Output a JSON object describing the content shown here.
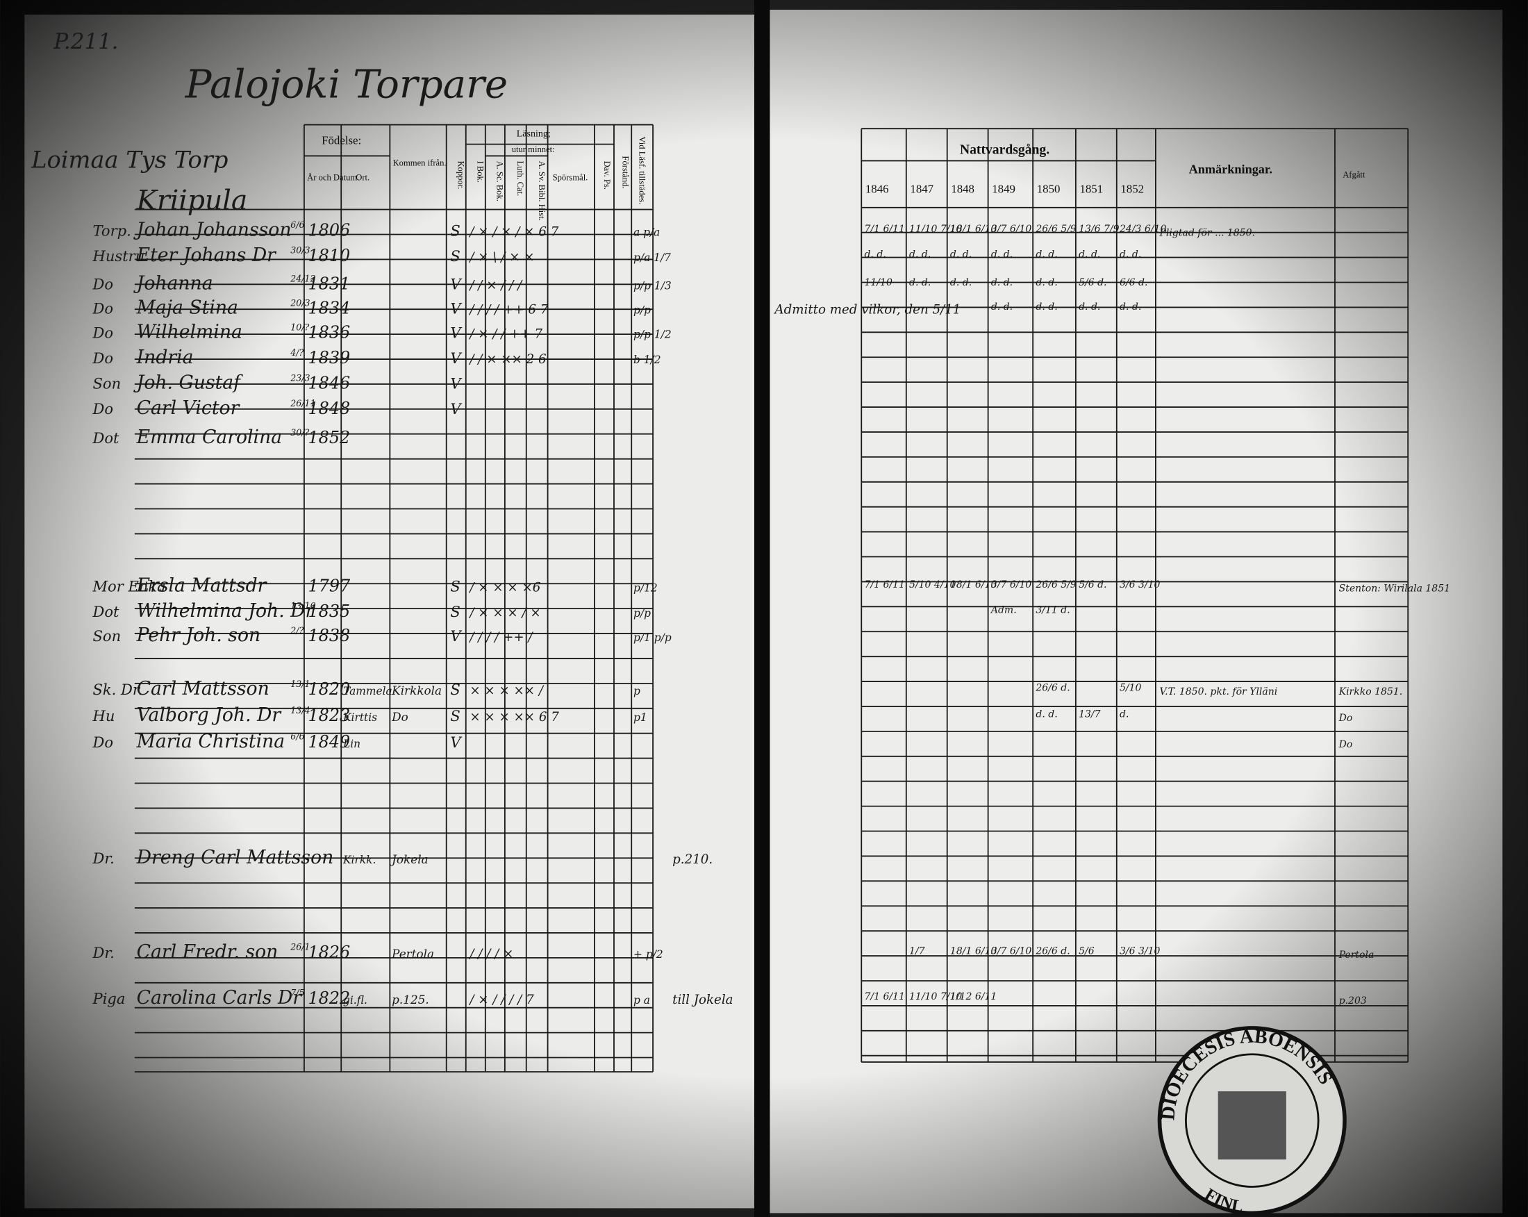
{
  "page_number": "P.211.",
  "title": "Palojoki Torpare",
  "household": "Loimaa Tys Torp",
  "farm": "Kriipula",
  "left_header": {
    "fodelse": "Födelse:",
    "ar": "År och Datum.",
    "ort": "Ort.",
    "kommen": "Kommen ifrån.",
    "koppor": "Koppor.",
    "lasning": "Läsning;",
    "utur": "utur minnet:",
    "ibok": "I Bok.",
    "abok": "A. Sc. Bok.",
    "luth": "Luth. Cat.",
    "asv": "A. Sv. Bibl. Hist.",
    "spors": "Spörsmål.",
    "dav": "Dav. Ps.",
    "forst": "Förstånd.",
    "vid": "Vid Läsf. tillstädes."
  },
  "right_header": {
    "natt": "Nattvardsgång.",
    "years": [
      "1846",
      "1847",
      "1848",
      "1849",
      "1850",
      "1851",
      "1852"
    ],
    "anm": "Anmärkningar.",
    "afgatt": "Afgått"
  },
  "rows": [
    {
      "rel": "Torp.",
      "name": "Johan Johansson",
      "date": "6/6",
      "year": "1806",
      "koppor": "S",
      "reading": "/ × / × / × 6 7",
      "vid": "a p/a",
      "communion": [
        "7/1 6/11",
        "11/10 7/10",
        "18/1 6/10",
        "3/7 6/10",
        "26/6 5/9",
        "13/6 7/9",
        "24/3 6/10"
      ],
      "anm": "Pligtad för ...  1850."
    },
    {
      "rel": "Hustru",
      "name": "Eter Johans Dr",
      "date": "30/3",
      "year": "1810",
      "koppor": "S",
      "reading": "/ × \\ / × ×",
      "vid": "p/a 1/7",
      "communion": [
        "d. d.",
        "d. d.",
        "d. d.",
        "d. d.",
        "d. d.",
        "d. d.",
        "d. d."
      ]
    },
    {
      "rel": "Do",
      "name": "Johanna",
      "date": "24/12",
      "year": "1831",
      "koppor": "V",
      "reading": "/ / × / / /",
      "vid": "p/p 1/3",
      "communion": [
        "11/10",
        "d. d.",
        "d. d.",
        "d. d.",
        "d. d.",
        "5/6 d.",
        "6/6 d."
      ]
    },
    {
      "rel": "Do",
      "name": "Maja Stina",
      "date": "20/3",
      "year": "1834",
      "koppor": "V",
      "reading": "/ / / / ++ 6 7",
      "vid": "p/p",
      "note": "Admitto med vilkor, den 5/11",
      "communion": [
        "",
        "",
        "",
        "d. d.",
        "d. d.",
        "d. d.",
        "d. d."
      ]
    },
    {
      "rel": "Do",
      "name": "Wilhelmina",
      "date": "10/?",
      "year": "1836",
      "koppor": "V",
      "reading": "/ × / / ++ 7",
      "vid": "p/p 1/2"
    },
    {
      "rel": "Do",
      "name": "Indria",
      "date": "4/?",
      "year": "1839",
      "koppor": "V",
      "reading": "/ / × ×× 2 6",
      "vid": "b 1/2"
    },
    {
      "rel": "Son",
      "name": "Joh. Gustaf",
      "date": "23/3",
      "year": "1846",
      "koppor": "V"
    },
    {
      "rel": "Do",
      "name": "Carl Victor",
      "date": "26/11",
      "year": "1848",
      "koppor": "V"
    },
    {
      "rel": "Dot",
      "name": "Emma Carolina",
      "date": "30/?",
      "year": "1852"
    },
    {
      "rel": "Mor Enka",
      "name": "Ersla Mattsdr",
      "year": "1797",
      "koppor": "S",
      "reading": "/ × × × ×6",
      "vid": "p/12",
      "communion": [
        "7/1 6/11",
        "5/10 4/10",
        "18/1 6/10",
        "3/7 6/10",
        "26/6 5/9",
        "5/6 d.",
        "3/6 3/10"
      ],
      "afgatt": "Stenton: Wirilala 1851"
    },
    {
      "rel": "Dot",
      "name": "Wilhelmina Joh. Dr",
      "date": "13/10",
      "year": "1835",
      "koppor": "S",
      "reading": "/ × × × / ×",
      "vid": "p/p",
      "communion": [
        "",
        "",
        "",
        "Adm.",
        "3/11 d.",
        "",
        ""
      ]
    },
    {
      "rel": "Son",
      "name": "Pehr Joh. son",
      "date": "2/?",
      "year": "1838",
      "koppor": "V",
      "reading": "/ / / / ++ /",
      "vid": "p/1 p/p"
    },
    {
      "rel": "Sk. Dr.",
      "name": "Carl Mattsson",
      "date": "13/1",
      "year": "1820",
      "ort": "Tammela",
      "kommen": "Kirkkola",
      "koppor": "S",
      "reading": "× × × ×× /",
      "vid": "p",
      "communion": [
        "",
        "",
        "",
        "",
        "26/6 d.",
        "",
        "5/10"
      ],
      "anm": "V.T. 1850. pkt. för Ylläni",
      "afgatt": "Kirkko 1851."
    },
    {
      "rel": "Hu",
      "name": "Valborg Joh. Dr",
      "date": "13/4",
      "year": "1823",
      "ort": "Kirttis",
      "kommen": "Do",
      "koppor": "S",
      "reading": "× × × ×× 6 7",
      "vid": "p1",
      "communion": [
        "",
        "",
        "",
        "",
        "d. d.",
        "13/7",
        "d."
      ],
      "afgatt": "Do"
    },
    {
      "rel": "Do",
      "name": "Maria Christina",
      "date": "6/6",
      "year": "1849",
      "ort": "Lin",
      "koppor": "V",
      "afgatt": "Do"
    },
    {
      "rel": "Dr.",
      "name": "Dreng Carl Mattsson",
      "ort": "Kirkk.",
      "kommen": "Jokela",
      "note": "p.210."
    },
    {
      "rel": "Dr.",
      "name": "Carl Fredr. son",
      "date": "26/1",
      "year": "1826",
      "kommen": "Pertola",
      "reading": "/ / / / ×",
      "vid": "+ p/2",
      "communion": [
        "",
        "1/7",
        "18/1 6/10",
        "3/7 6/10",
        "26/6 d.",
        "5/6",
        "3/6 3/10"
      ],
      "afgatt": "Pertola"
    },
    {
      "rel": "Piga",
      "name": "Carolina Carls Dr",
      "date": "7/5",
      "year": "1822",
      "ort": "gi.fl.",
      "kommen": "p.125.",
      "reading": "/ × / / / / 7",
      "vid": "p a",
      "note": "till Jokela",
      "communion": [
        "7/1 6/11",
        "11/10 7/10",
        "1/12 6/11",
        "",
        "",
        "",
        ""
      ],
      "afgatt": "p.203"
    }
  ],
  "stamp": "DIOECESIS ABOENSIS",
  "stamp_low": "FINL"
}
